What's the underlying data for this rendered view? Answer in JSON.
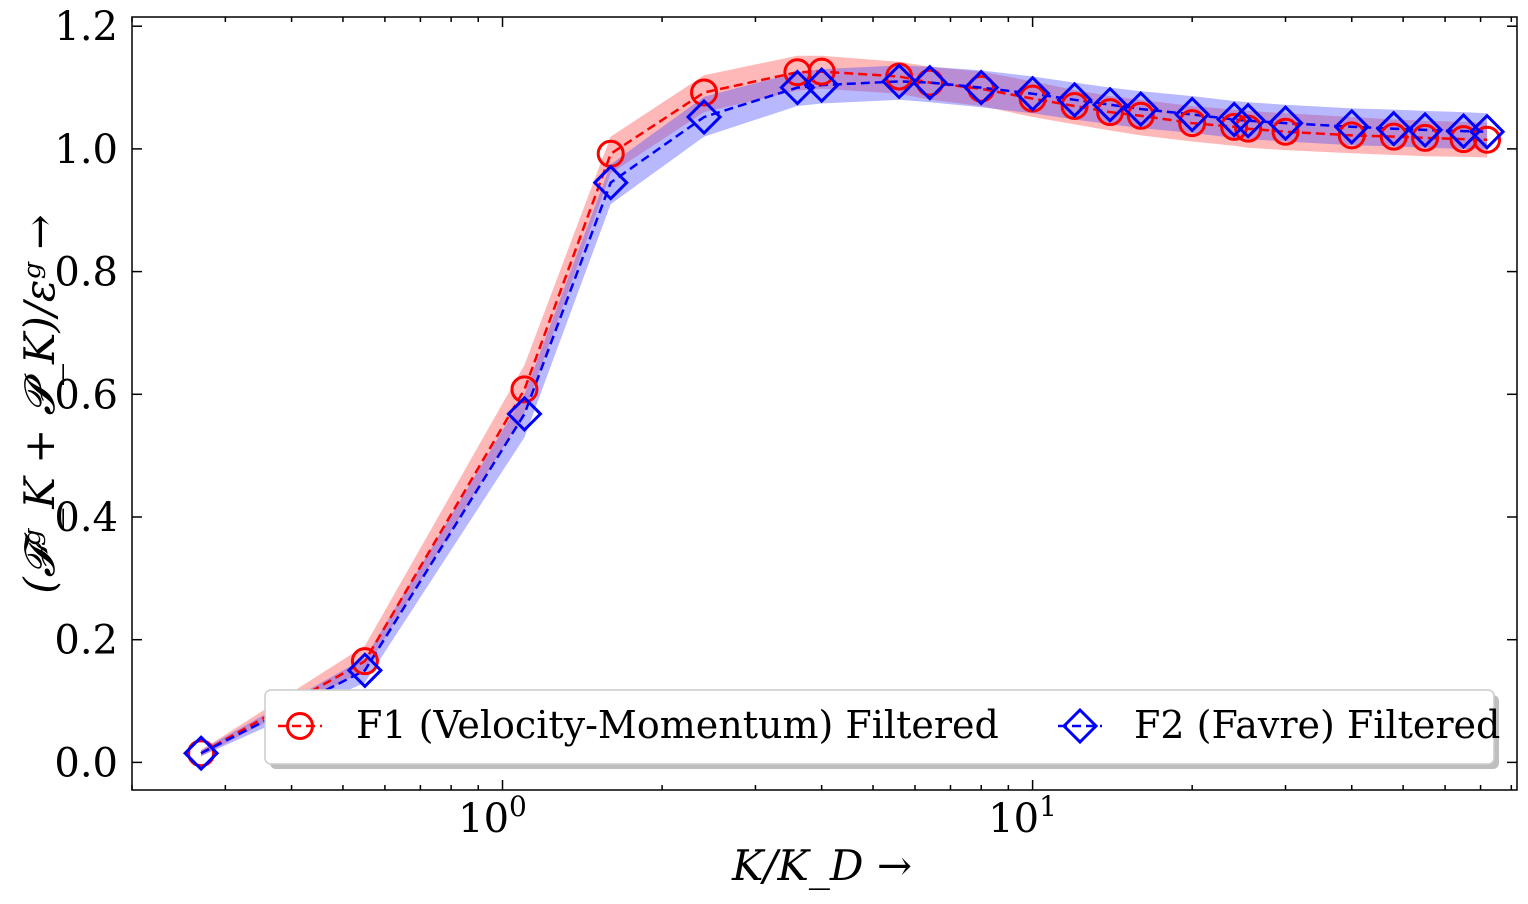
{
  "chart_data": {
    "type": "line",
    "xscale": "log",
    "xlim": [
      0.2,
      82
    ],
    "ylim": [
      -0.045,
      1.215
    ],
    "xlabel": "K/K_D →",
    "ylabel": "(𝓕ᵍ_K + 𝓟_K)/εᵍ →",
    "grid": false,
    "legend_position": "bottom-right",
    "yticks": [
      {
        "value": 0.0,
        "label": "0.0"
      },
      {
        "value": 0.2,
        "label": "0.2"
      },
      {
        "value": 0.4,
        "label": "0.4"
      },
      {
        "value": 0.6,
        "label": "0.6"
      },
      {
        "value": 0.8,
        "label": "0.8"
      },
      {
        "value": 1.0,
        "label": "1.0"
      },
      {
        "value": 1.2,
        "label": "1.2"
      }
    ],
    "xticks": [
      {
        "value": 1,
        "label_base": "10",
        "label_exp": "0"
      },
      {
        "value": 10,
        "label_base": "10",
        "label_exp": "1"
      }
    ],
    "series": [
      {
        "name": "F1 (Velocity-Momentum) Filtered",
        "color": "#ff0000",
        "band_color": "#ff4d4d",
        "marker": "circle",
        "x": [
          0.27,
          0.55,
          1.1,
          1.6,
          2.4,
          3.6,
          4.0,
          5.6,
          6.4,
          8.0,
          10.0,
          12.0,
          14.0,
          16.0,
          20.0,
          24.0,
          25.5,
          30.0,
          40.0,
          48.0,
          55.0,
          65.0,
          72.0
        ],
        "y": [
          0.015,
          0.165,
          0.608,
          0.992,
          1.092,
          1.125,
          1.126,
          1.118,
          1.108,
          1.098,
          1.082,
          1.07,
          1.06,
          1.054,
          1.042,
          1.036,
          1.033,
          1.028,
          1.022,
          1.02,
          1.018,
          1.016,
          1.015
        ],
        "lower": [
          0.01,
          0.15,
          0.57,
          0.96,
          1.06,
          1.095,
          1.098,
          1.09,
          1.08,
          1.07,
          1.052,
          1.04,
          1.03,
          1.022,
          1.012,
          1.005,
          1.002,
          0.998,
          0.993,
          0.99,
          0.988,
          0.987,
          0.986
        ],
        "upper": [
          0.02,
          0.19,
          0.648,
          1.02,
          1.12,
          1.152,
          1.152,
          1.142,
          1.134,
          1.126,
          1.11,
          1.096,
          1.086,
          1.08,
          1.07,
          1.064,
          1.062,
          1.058,
          1.052,
          1.048,
          1.046,
          1.044,
          1.043
        ]
      },
      {
        "name": "F2 (Favre) Filtered",
        "color": "#0000ff",
        "band_color": "#4d4dff",
        "marker": "diamond",
        "x": [
          0.27,
          0.55,
          1.1,
          1.6,
          2.4,
          3.6,
          4.0,
          5.6,
          6.4,
          8.0,
          10.0,
          12.0,
          14.0,
          16.0,
          20.0,
          24.0,
          25.5,
          30.0,
          40.0,
          48.0,
          55.0,
          65.0,
          72.0
        ],
        "y": [
          0.015,
          0.15,
          0.568,
          0.945,
          1.052,
          1.1,
          1.104,
          1.11,
          1.108,
          1.1,
          1.09,
          1.08,
          1.072,
          1.065,
          1.056,
          1.048,
          1.046,
          1.042,
          1.036,
          1.033,
          1.031,
          1.029,
          1.028
        ],
        "lower": [
          0.01,
          0.13,
          0.53,
          0.91,
          1.02,
          1.07,
          1.074,
          1.08,
          1.076,
          1.068,
          1.058,
          1.048,
          1.04,
          1.034,
          1.026,
          1.018,
          1.016,
          1.012,
          1.006,
          1.004,
          1.002,
          1.0,
          0.999
        ],
        "upper": [
          0.02,
          0.17,
          0.6,
          0.975,
          1.085,
          1.125,
          1.13,
          1.136,
          1.134,
          1.128,
          1.118,
          1.108,
          1.1,
          1.094,
          1.086,
          1.078,
          1.076,
          1.072,
          1.066,
          1.064,
          1.062,
          1.06,
          1.058
        ]
      }
    ]
  }
}
